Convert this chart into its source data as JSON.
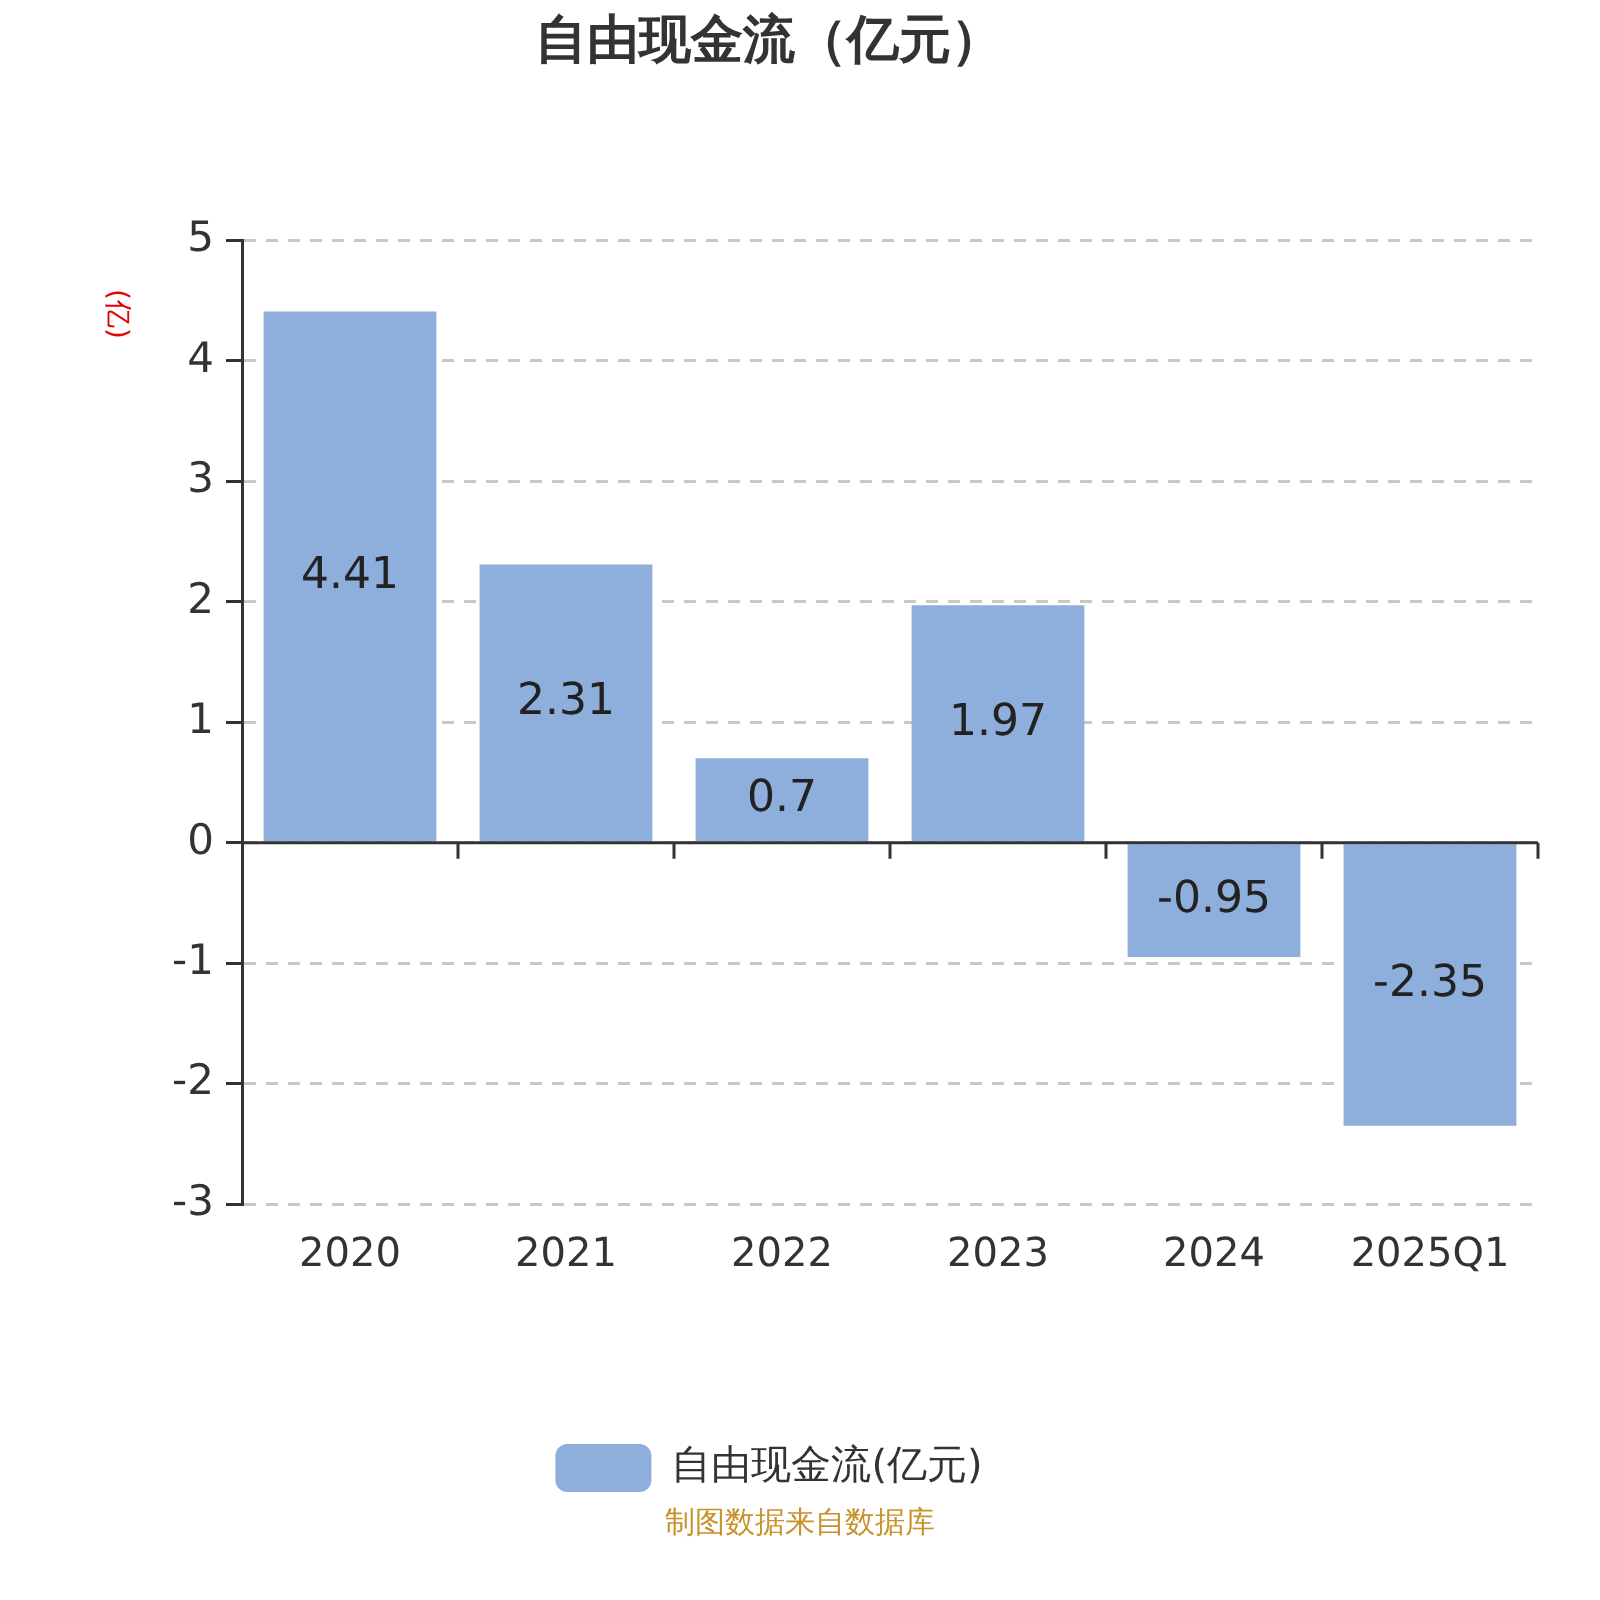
{
  "chart_data": {
    "type": "bar",
    "title": "自由现金流（亿元）",
    "ylabel": "(亿)",
    "categories": [
      "2020",
      "2021",
      "2022",
      "2023",
      "2024",
      "2025Q1"
    ],
    "series": [
      {
        "name": "自由现金流(亿元)",
        "color": "#8eaedb",
        "values": [
          4.41,
          2.31,
          0.7,
          1.97,
          -0.95,
          -2.35
        ]
      }
    ],
    "ylim": [
      -3,
      5
    ],
    "yticks": [
      -3,
      -2,
      -1,
      0,
      1,
      2,
      3,
      4,
      5
    ],
    "grid": "y",
    "legend": "bottom",
    "data_labels": true,
    "annotations": [
      "制图数据来自数据库"
    ]
  }
}
